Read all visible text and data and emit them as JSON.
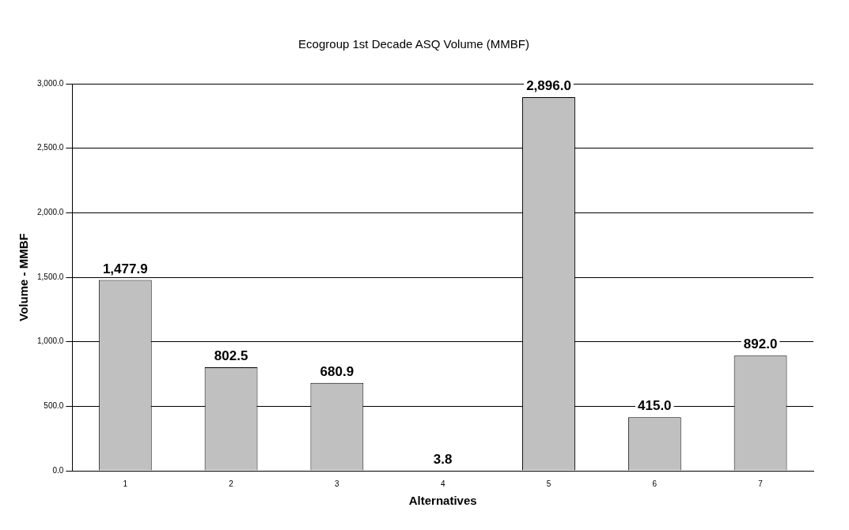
{
  "chart_data": {
    "type": "bar",
    "title": "Ecogroup 1st Decade ASQ Volume (MMBF)",
    "xlabel": "Alternatives",
    "ylabel": "Volume - MMBF",
    "categories": [
      "1",
      "2",
      "3",
      "4",
      "5",
      "6",
      "7"
    ],
    "values": [
      1477.9,
      802.5,
      680.9,
      3.8,
      2896.0,
      415.0,
      892.0
    ],
    "value_labels": [
      "1,477.9",
      "802.5",
      "680.9",
      "3.8",
      "2,896.0",
      "415.0",
      "892.0"
    ],
    "color": "#c0c0c0",
    "ylim": [
      0,
      3000
    ],
    "yticks": [
      {
        "value": 0,
        "label": "0.0"
      },
      {
        "value": 500,
        "label": "500.0"
      },
      {
        "value": 1000,
        "label": "1,000.0"
      },
      {
        "value": 1500,
        "label": "1,500.0"
      },
      {
        "value": 2000,
        "label": "2,000.0"
      },
      {
        "value": 2500,
        "label": "2,500.0"
      },
      {
        "value": 3000,
        "label": "3,000.0"
      }
    ],
    "grid": "y",
    "legend": false
  }
}
